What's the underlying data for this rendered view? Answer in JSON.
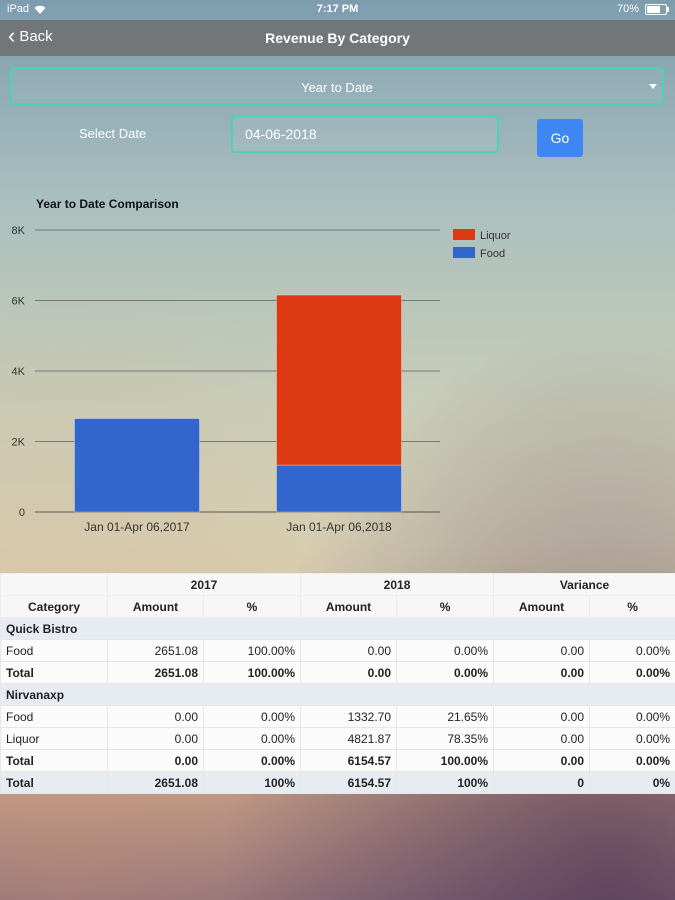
{
  "status_bar": {
    "device": "iPad",
    "time": "7:17 PM",
    "battery": "70%",
    "battery_level": 0.7
  },
  "nav": {
    "back_label": "Back",
    "title": "Revenue By Category"
  },
  "filter": {
    "period_value": "Year to Date",
    "date_label": "Select Date",
    "date_value": "04-06-2018",
    "go_label": "Go"
  },
  "colors": {
    "liquor": "#dc3912",
    "food": "#3366cc",
    "accent": "#4bd3b3",
    "go_button": "#3e86f1"
  },
  "chart_data": {
    "type": "bar",
    "stacked": true,
    "title": "Year to Date Comparison",
    "categories": [
      "Jan 01-Apr 06,2017",
      "Jan 01-Apr 06,2018"
    ],
    "series": [
      {
        "name": "Food",
        "values": [
          2651.08,
          1332.7
        ]
      },
      {
        "name": "Liquor",
        "values": [
          0,
          4821.87
        ]
      }
    ],
    "legend_order": [
      "Liquor",
      "Food"
    ],
    "y_ticks": [
      "0",
      "2K",
      "4K",
      "6K",
      "8K"
    ],
    "ylim": [
      0,
      8000
    ],
    "grid": true,
    "legend_position": "right"
  },
  "table": {
    "period_headers": [
      "2017",
      "2018",
      "Variance"
    ],
    "column_headers": [
      "Category",
      "Amount",
      "%",
      "Amount",
      "%",
      "Amount",
      "%"
    ],
    "groups": [
      {
        "name": "Quick Bistro",
        "rows": [
          {
            "cells": [
              "Food",
              "2651.08",
              "100.00%",
              "0.00",
              "0.00%",
              "0.00",
              "0.00%"
            ]
          }
        ],
        "total": [
          "Total",
          "2651.08",
          "100.00%",
          "0.00",
          "0.00%",
          "0.00",
          "0.00%"
        ]
      },
      {
        "name": "Nirvanaxp",
        "rows": [
          {
            "cells": [
              "Food",
              "0.00",
              "0.00%",
              "1332.70",
              "21.65%",
              "0.00",
              "0.00%"
            ]
          },
          {
            "cells": [
              "Liquor",
              "0.00",
              "0.00%",
              "4821.87",
              "78.35%",
              "0.00",
              "0.00%"
            ]
          }
        ],
        "total": [
          "Total",
          "0.00",
          "0.00%",
          "6154.57",
          "100.00%",
          "0.00",
          "0.00%"
        ]
      }
    ],
    "grand_total": [
      "Total",
      "2651.08",
      "100%",
      "6154.57",
      "100%",
      "0",
      "0%"
    ]
  }
}
